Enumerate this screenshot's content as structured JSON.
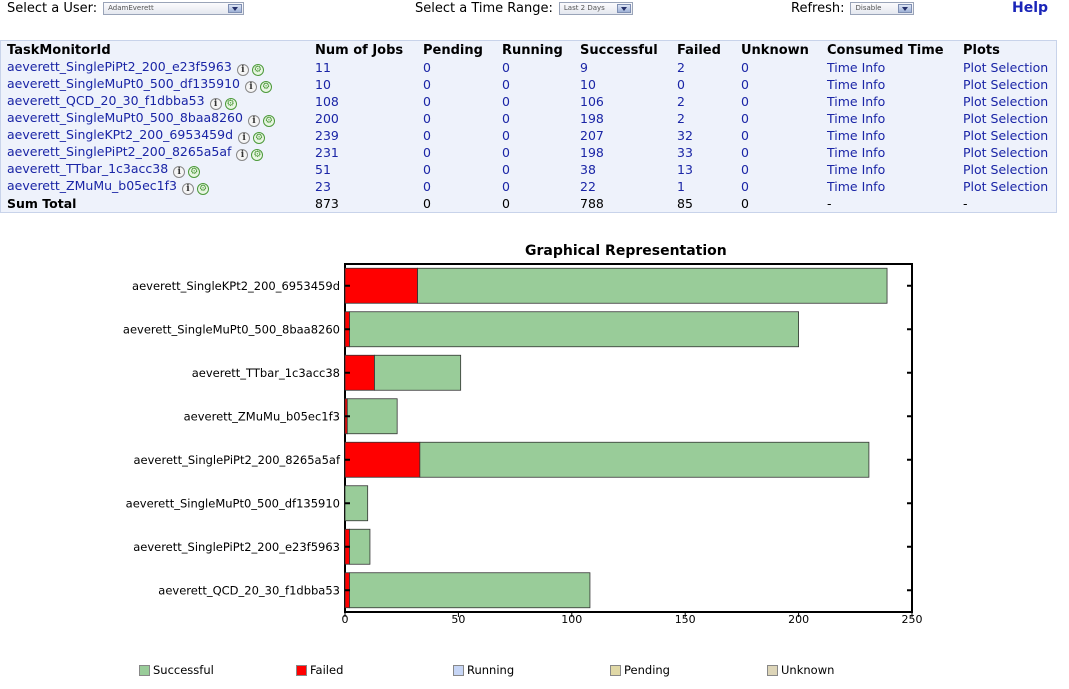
{
  "header": {
    "user_label": "Select a User:",
    "user_value": "AdamEverett",
    "range_label": "Select a Time Range:",
    "range_value": "Last 2 Days",
    "refresh_label": "Refresh:",
    "refresh_value": "Disable",
    "help_label": "Help"
  },
  "table": {
    "columns": [
      "TaskMonitorId",
      "Num of Jobs",
      "Pending",
      "Running",
      "Successful",
      "Failed",
      "Unknown",
      "Consumed Time",
      "Plots"
    ],
    "rows": [
      {
        "id": "aeverett_SinglePiPt2_200_e23f5963",
        "jobs": "11",
        "pending": "0",
        "running": "0",
        "successful": "9",
        "failed": "2",
        "unknown": "0",
        "time": "Time Info",
        "plots": "Plot Selection"
      },
      {
        "id": "aeverett_SingleMuPt0_500_df135910",
        "jobs": "10",
        "pending": "0",
        "running": "0",
        "successful": "10",
        "failed": "0",
        "unknown": "0",
        "time": "Time Info",
        "plots": "Plot Selection"
      },
      {
        "id": "aeverett_QCD_20_30_f1dbba53",
        "jobs": "108",
        "pending": "0",
        "running": "0",
        "successful": "106",
        "failed": "2",
        "unknown": "0",
        "time": "Time Info",
        "plots": "Plot Selection"
      },
      {
        "id": "aeverett_SingleMuPt0_500_8baa8260",
        "jobs": "200",
        "pending": "0",
        "running": "0",
        "successful": "198",
        "failed": "2",
        "unknown": "0",
        "time": "Time Info",
        "plots": "Plot Selection"
      },
      {
        "id": "aeverett_SingleKPt2_200_6953459d",
        "jobs": "239",
        "pending": "0",
        "running": "0",
        "successful": "207",
        "failed": "32",
        "unknown": "0",
        "time": "Time Info",
        "plots": "Plot Selection"
      },
      {
        "id": "aeverett_SinglePiPt2_200_8265a5af",
        "jobs": "231",
        "pending": "0",
        "running": "0",
        "successful": "198",
        "failed": "33",
        "unknown": "0",
        "time": "Time Info",
        "plots": "Plot Selection"
      },
      {
        "id": "aeverett_TTbar_1c3acc38",
        "jobs": "51",
        "pending": "0",
        "running": "0",
        "successful": "38",
        "failed": "13",
        "unknown": "0",
        "time": "Time Info",
        "plots": "Plot Selection"
      },
      {
        "id": "aeverett_ZMuMu_b05ec1f3",
        "jobs": "23",
        "pending": "0",
        "running": "0",
        "successful": "22",
        "failed": "1",
        "unknown": "0",
        "time": "Time Info",
        "plots": "Plot Selection"
      }
    ],
    "total": {
      "label": "Sum Total",
      "jobs": "873",
      "pending": "0",
      "running": "0",
      "successful": "788",
      "failed": "85",
      "unknown": "0",
      "time": "-",
      "plots": "-"
    }
  },
  "chart_data": {
    "type": "bar",
    "orientation": "horizontal",
    "stacked": true,
    "title": "Graphical Representation",
    "xlim": [
      0,
      250
    ],
    "xticks": [
      0,
      50,
      100,
      150,
      200,
      250
    ],
    "categories": [
      "aeverett_SingleKPt2_200_6953459d",
      "aeverett_SingleMuPt0_500_8baa8260",
      "aeverett_TTbar_1c3acc38",
      "aeverett_ZMuMu_b05ec1f3",
      "aeverett_SinglePiPt2_200_8265a5af",
      "aeverett_SingleMuPt0_500_df135910",
      "aeverett_SinglePiPt2_200_e23f5963",
      "aeverett_QCD_20_30_f1dbba53"
    ],
    "series": [
      {
        "name": "Failed",
        "color": "#ff0000",
        "values": [
          32,
          2,
          13,
          1,
          33,
          0,
          2,
          2
        ]
      },
      {
        "name": "Successful",
        "color": "#99cc99",
        "values": [
          207,
          198,
          38,
          22,
          198,
          10,
          9,
          106
        ]
      }
    ],
    "legend": {
      "placement": "bottom",
      "entries": [
        {
          "name": "Successful",
          "color": "#99cc99"
        },
        {
          "name": "Failed",
          "color": "#ff0000"
        },
        {
          "name": "Running",
          "color": "#c6d5f5"
        },
        {
          "name": "Pending",
          "color": "#e0d8a6"
        },
        {
          "name": "Unknown",
          "color": "#ddd5b8"
        }
      ]
    }
  }
}
